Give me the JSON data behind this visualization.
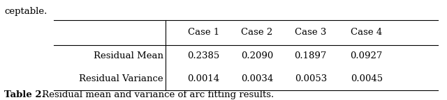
{
  "top_text": "ceptable.",
  "col_header": [
    "",
    "Case 1",
    "Case 2",
    "Case 3",
    "Case 4"
  ],
  "rows": [
    [
      "Residual Mean",
      "0.2385",
      "0.2090",
      "0.1897",
      "0.0927"
    ],
    [
      "Residual Variance",
      "0.0014",
      "0.0034",
      "0.0053",
      "0.0045"
    ]
  ],
  "caption_bold": "Table 2.",
  "caption_normal": " Residual mean and variance of arc fitting results.",
  "background_color": "#ffffff",
  "text_color": "#000000",
  "font_size": 9.5,
  "caption_font_size": 9.5
}
